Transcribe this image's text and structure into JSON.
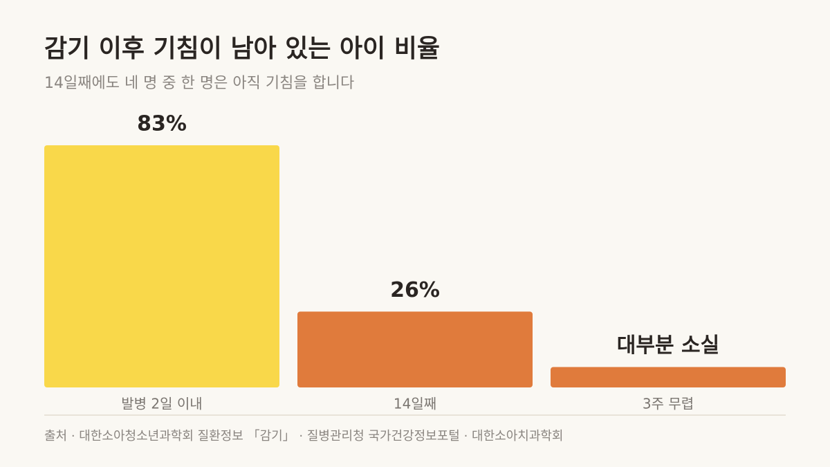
{
  "chart_data": {
    "type": "bar",
    "title": "감기 이후 기침이 남아 있는 아이 비율",
    "subtitle": "14일째에도 네 명 중 한 명은 아직 기침을 합니다",
    "categories": [
      "발병 2일 이내",
      "14일째",
      "3주 무렵"
    ],
    "values": [
      83,
      26,
      7
    ],
    "value_labels": [
      "83%",
      "26%",
      "대부분 소실"
    ],
    "colors": [
      "#f9d84a",
      "#e07b3c",
      "#e07b3c"
    ],
    "ylim": [
      0,
      100
    ],
    "source": "출처 · 대한소아청소년과학회 질환정보 「감기」 · 질병관리청 국가건강정보포털 · 대한소아치과학회"
  }
}
